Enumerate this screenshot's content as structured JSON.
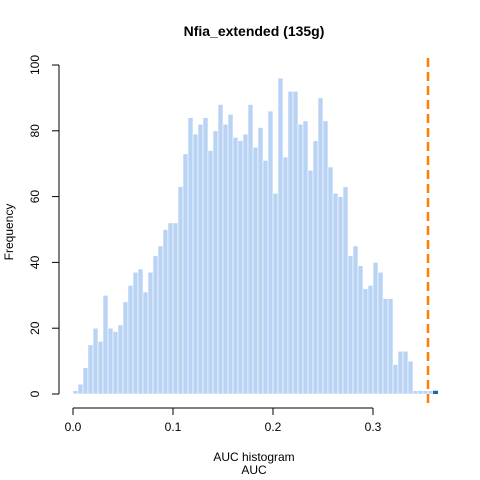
{
  "chart_data": {
    "type": "bar",
    "title": "Nfia_extended (135g)",
    "xlabel": "AUC histogram",
    "xlabel2": "AUC",
    "ylabel": "Frequency",
    "xlim": [
      -0.005,
      0.365
    ],
    "ylim": [
      0,
      100
    ],
    "x_ticks": [
      "0.0",
      "0.1",
      "0.2",
      "0.3"
    ],
    "y_ticks": [
      "0",
      "20",
      "40",
      "60",
      "80",
      "100"
    ],
    "bin_width": 0.005,
    "bins_start": 0.0,
    "values": [
      1,
      3,
      8,
      15,
      20,
      16,
      30,
      20,
      19,
      21,
      28,
      33,
      37,
      38,
      31,
      37,
      42,
      45,
      50,
      52,
      52,
      63,
      73,
      84,
      79,
      82,
      84,
      74,
      80,
      88,
      82,
      85,
      78,
      77,
      79,
      88,
      75,
      81,
      71,
      86,
      61,
      96,
      72,
      92,
      92,
      82,
      83,
      68,
      77,
      90,
      83,
      69,
      61,
      60,
      63,
      42,
      45,
      39,
      32,
      33,
      40,
      37,
      29,
      29,
      9,
      13,
      13,
      10,
      1,
      1,
      1,
      1,
      1
    ],
    "highlight_bins": [
      {
        "x": 0.36,
        "value": 1
      }
    ],
    "reference_line": {
      "x": 0.355,
      "color": "#ff7f00",
      "style": "dashed"
    },
    "colors": {
      "bars": "#b8d3f4",
      "highlight": "#2166ac",
      "axis": "#000000"
    },
    "grid": false,
    "legend": "none"
  }
}
